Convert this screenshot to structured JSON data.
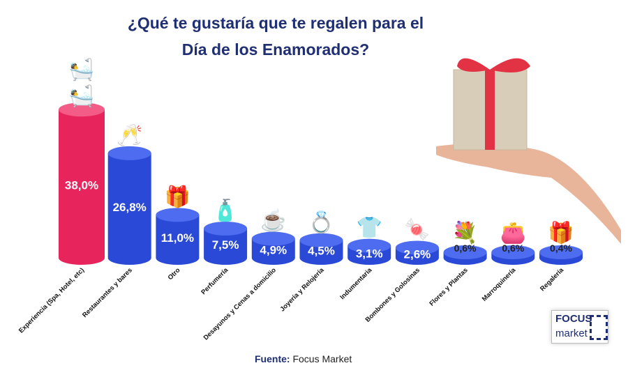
{
  "title_lines": [
    "¿Qué te gustaría que te regalen para el",
    "Día de los Enamorados?"
  ],
  "source": {
    "label": "Fuente:",
    "value": "Focus Market"
  },
  "logo": {
    "line1": "FOCUS",
    "line2": "market"
  },
  "colors": {
    "highlight": "#e8245c",
    "bar": "#2a49d6",
    "title": "#1f2f72"
  },
  "chart_data": {
    "type": "bar",
    "title": "¿Qué te gustaría que te regalen para el Día de los Enamorados?",
    "categories": [
      "Experiencia (Spa, Hotel, etc)",
      "Restaurantes y bares",
      "Otro",
      "Perfumería",
      "Desayunos y Cenas a domicilio",
      "Joyería y Relojería",
      "Indumentaria",
      "Bombones y Golosinas",
      "Flores y Plantas",
      "Marroquinería",
      "Regalería"
    ],
    "values": [
      38.0,
      26.8,
      11.0,
      7.5,
      4.9,
      4.5,
      3.1,
      2.6,
      0.6,
      0.6,
      0.4
    ],
    "labels": [
      "38,0%",
      "26,8%",
      "11,0%",
      "7,5%",
      "4,9%",
      "4,5%",
      "3,1%",
      "2,6%",
      "0,6%",
      "0,6%",
      "0,4%"
    ],
    "icons": [
      "spa-massage-icon",
      "champagne-toast-icon",
      "gift-icon",
      "perfume-icon",
      "breakfast-icon",
      "ring-icon",
      "clothes-icon",
      "candy-icon",
      "bouquet-icon",
      "wallet-icon",
      "gift-icon"
    ],
    "unit": "%",
    "grid": false,
    "legend": "none"
  }
}
